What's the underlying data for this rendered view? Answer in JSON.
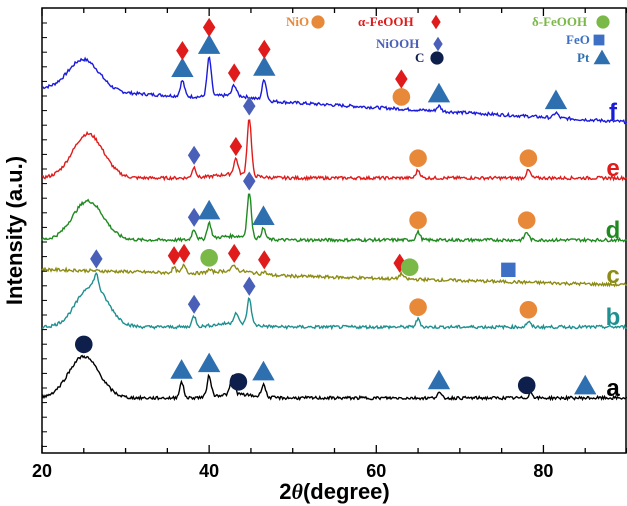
{
  "chart_data": {
    "type": "line",
    "xlabel": "2θ(degree)",
    "xlabel_main": "2",
    "xlabel_theta": "θ",
    "xlabel_unit": "(degree)",
    "ylabel": "Intensity (a.u.)",
    "xlim": [
      20,
      90
    ],
    "xticks": [
      20,
      40,
      60,
      80
    ],
    "legend": [
      {
        "name": "NiO",
        "marker": "circle",
        "color": "#e8893a"
      },
      {
        "name": "α-FeOOH",
        "marker": "diamond",
        "color": "#e01b1b"
      },
      {
        "name": "NiOOH",
        "marker": "diamond",
        "color": "#4a5fb8"
      },
      {
        "name": "C",
        "marker": "circle",
        "color": "#0d1f4a"
      },
      {
        "name": "δ-FeOOH",
        "marker": "circle",
        "color": "#7ab848"
      },
      {
        "name": "FeO",
        "marker": "square",
        "color": "#3d6fc4"
      },
      {
        "name": "Pt",
        "marker": "triangle",
        "color": "#2e6fb0"
      }
    ],
    "series": [
      {
        "name": "f",
        "color": "#1a1adb",
        "offset": 5,
        "baseline": 0.13,
        "hump_center": 25,
        "hump_height": 0.12,
        "peaks": [
          [
            36.8,
            0.06
          ],
          [
            40.0,
            0.15
          ],
          [
            43.0,
            0.04
          ],
          [
            46.6,
            0.08
          ],
          [
            67.5,
            0.02
          ],
          [
            81.5,
            0.02
          ]
        ],
        "markers": [
          {
            "phase": "α-FeOOH",
            "x": 36.8
          },
          {
            "phase": "Pt",
            "x": 36.8
          },
          {
            "phase": "α-FeOOH",
            "x": 40.0
          },
          {
            "phase": "Pt",
            "x": 40.0
          },
          {
            "phase": "α-FeOOH",
            "x": 43.0
          },
          {
            "phase": "α-FeOOH",
            "x": 46.6
          },
          {
            "phase": "Pt",
            "x": 46.6
          },
          {
            "phase": "α-FeOOH",
            "x": 63.0
          },
          {
            "phase": "NiO",
            "x": 63.0
          },
          {
            "phase": "Pt",
            "x": 67.5
          },
          {
            "phase": "Pt",
            "x": 81.5
          }
        ]
      },
      {
        "name": "e",
        "color": "#e01b1b",
        "offset": 4,
        "baseline": 0.0,
        "hump_center": 25.5,
        "hump_height": 0.17,
        "peaks": [
          [
            38.2,
            0.04
          ],
          [
            43.2,
            0.06
          ],
          [
            44.8,
            0.22
          ],
          [
            65.0,
            0.03
          ],
          [
            78.2,
            0.03
          ]
        ],
        "markers": [
          {
            "phase": "NiOOH",
            "x": 38.2
          },
          {
            "phase": "α-FeOOH",
            "x": 43.2
          },
          {
            "phase": "NiOOH",
            "x": 44.8
          },
          {
            "phase": "NiO",
            "x": 65.0
          },
          {
            "phase": "NiO",
            "x": 78.2
          }
        ]
      },
      {
        "name": "d",
        "color": "#1f8a1f",
        "offset": 3,
        "baseline": 0.0,
        "hump_center": 25.5,
        "hump_height": 0.15,
        "peaks": [
          [
            38.2,
            0.04
          ],
          [
            40.0,
            0.06
          ],
          [
            44.8,
            0.17
          ],
          [
            46.5,
            0.04
          ],
          [
            65.0,
            0.03
          ],
          [
            78.0,
            0.03
          ]
        ],
        "markers": [
          {
            "phase": "NiOOH",
            "x": 38.2
          },
          {
            "phase": "Pt",
            "x": 40.0
          },
          {
            "phase": "NiOOH",
            "x": 44.8
          },
          {
            "phase": "Pt",
            "x": 46.5
          },
          {
            "phase": "NiO",
            "x": 65.0
          },
          {
            "phase": "NiO",
            "x": 78.0
          }
        ]
      },
      {
        "name": "c",
        "color": "#8c8c14",
        "offset": 2,
        "baseline": 0.06,
        "hump_center": 25,
        "hump_height": 0.0,
        "peaks": [
          [
            35.8,
            0.02
          ],
          [
            37.0,
            0.03
          ],
          [
            40.0,
            0.01
          ],
          [
            43.0,
            0.02
          ],
          [
            46.6,
            0.01
          ],
          [
            63.0,
            0.02
          ]
        ],
        "markers": [
          {
            "phase": "NiOOH",
            "x": 26.5
          },
          {
            "phase": "α-FeOOH",
            "x": 35.8
          },
          {
            "phase": "α-FeOOH",
            "x": 37.0
          },
          {
            "phase": "δ-FeOOH",
            "x": 40.0
          },
          {
            "phase": "α-FeOOH",
            "x": 43.0
          },
          {
            "phase": "α-FeOOH",
            "x": 46.6
          },
          {
            "phase": "α-FeOOH",
            "x": 62.8
          },
          {
            "phase": "δ-FeOOH",
            "x": 64.0
          },
          {
            "phase": "FeO",
            "x": 75.8
          }
        ]
      },
      {
        "name": "b",
        "color": "#1f9090",
        "offset": 1,
        "baseline": 0.0,
        "hump_center": 26,
        "hump_height": 0.16,
        "peaks": [
          [
            26.5,
            0.05
          ],
          [
            38.2,
            0.04
          ],
          [
            43.2,
            0.04
          ],
          [
            44.8,
            0.1
          ],
          [
            65.0,
            0.03
          ],
          [
            78.2,
            0.02
          ]
        ],
        "markers": [
          {
            "phase": "NiOOH",
            "x": 38.2
          },
          {
            "phase": "NiOOH",
            "x": 44.8
          },
          {
            "phase": "NiO",
            "x": 65.0
          },
          {
            "phase": "NiO",
            "x": 78.2
          }
        ]
      },
      {
        "name": "a",
        "color": "#000000",
        "offset": 0,
        "baseline": 0.0,
        "hump_center": 25,
        "hump_height": 0.16,
        "peaks": [
          [
            36.7,
            0.06
          ],
          [
            40.0,
            0.08
          ],
          [
            42.8,
            0.07
          ],
          [
            46.5,
            0.05
          ],
          [
            67.5,
            0.02
          ],
          [
            78.5,
            0.02
          ]
        ],
        "markers": [
          {
            "phase": "C",
            "x": 25.0
          },
          {
            "phase": "Pt",
            "x": 36.7
          },
          {
            "phase": "Pt",
            "x": 40.0
          },
          {
            "phase": "C",
            "x": 43.5
          },
          {
            "phase": "Pt",
            "x": 46.5
          },
          {
            "phase": "Pt",
            "x": 67.5
          },
          {
            "phase": "C",
            "x": 78.0
          },
          {
            "phase": "Pt",
            "x": 85.0
          }
        ]
      }
    ]
  }
}
